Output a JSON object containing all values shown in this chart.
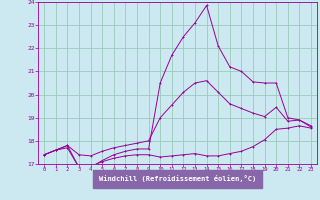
{
  "xlabel": "Windchill (Refroidissement éolien,°C)",
  "bg_color": "#cce8f0",
  "plot_bg_color": "#cce8f0",
  "line_color": "#990099",
  "grid_color": "#99ccbb",
  "xlabel_bg": "#8866aa",
  "xlim": [
    -0.5,
    23.5
  ],
  "ylim": [
    17,
    24
  ],
  "yticks": [
    17,
    18,
    19,
    20,
    21,
    22,
    23,
    24
  ],
  "xticks": [
    0,
    1,
    2,
    3,
    4,
    5,
    6,
    7,
    8,
    9,
    10,
    11,
    12,
    13,
    14,
    15,
    16,
    17,
    18,
    19,
    20,
    21,
    22,
    23
  ],
  "series1_x": [
    0,
    1,
    2,
    3,
    4,
    5,
    6,
    7,
    8,
    9,
    10,
    11,
    12,
    13,
    14,
    15,
    16,
    17,
    18,
    19,
    20,
    21,
    22,
    23
  ],
  "series1_y": [
    17.4,
    17.6,
    17.7,
    16.85,
    16.9,
    17.1,
    17.25,
    17.35,
    17.4,
    17.4,
    17.3,
    17.35,
    17.4,
    17.45,
    17.35,
    17.35,
    17.45,
    17.55,
    17.75,
    18.05,
    18.5,
    18.55,
    18.65,
    18.55
  ],
  "series2_x": [
    0,
    1,
    2,
    3,
    4,
    5,
    6,
    7,
    8,
    9,
    10,
    11,
    12,
    13,
    14,
    15,
    16,
    17,
    18,
    19,
    20,
    21,
    22,
    23
  ],
  "series2_y": [
    17.4,
    17.6,
    17.8,
    17.4,
    17.35,
    17.55,
    17.7,
    17.8,
    17.9,
    18.0,
    19.0,
    19.55,
    20.1,
    20.5,
    20.6,
    20.1,
    19.6,
    19.4,
    19.2,
    19.05,
    19.45,
    18.85,
    18.9,
    18.65
  ],
  "series3_x": [
    0,
    1,
    2,
    3,
    4,
    5,
    6,
    7,
    8,
    9,
    10,
    11,
    12,
    13,
    14,
    15,
    16,
    17,
    18,
    19,
    20,
    21,
    22,
    23
  ],
  "series3_y": [
    17.4,
    17.6,
    17.8,
    16.85,
    16.85,
    17.15,
    17.4,
    17.55,
    17.65,
    17.65,
    20.5,
    21.7,
    22.5,
    23.1,
    23.85,
    22.1,
    21.2,
    21.0,
    20.55,
    20.5,
    20.5,
    19.0,
    18.9,
    18.6
  ]
}
